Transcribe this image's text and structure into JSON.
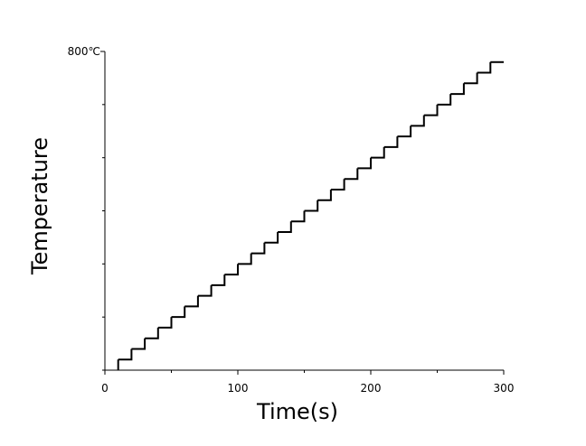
{
  "chart_data": {
    "type": "step",
    "drawstyle": "steps-post",
    "xlabel": "Time(s)",
    "ylabel": "Temperature",
    "x": [
      10,
      10,
      20,
      30,
      40,
      50,
      60,
      70,
      80,
      90,
      100,
      110,
      120,
      130,
      140,
      150,
      160,
      170,
      180,
      190,
      200,
      210,
      220,
      230,
      240,
      250,
      260,
      270,
      280,
      290,
      300
    ],
    "series": [
      {
        "color": "#000000",
        "values": [
          0,
          26.7,
          53.3,
          80,
          106.7,
          133.3,
          160,
          186.7,
          213.3,
          240,
          266.7,
          293.3,
          320,
          346.7,
          373.3,
          400,
          426.7,
          453.3,
          480,
          506.7,
          533.3,
          560,
          586.7,
          613.3,
          640,
          666.7,
          693.3,
          720,
          746.7,
          773.3,
          773.3
        ]
      }
    ],
    "xlim": [
      0,
      300
    ],
    "xticks": [
      0,
      100,
      200,
      300
    ],
    "xminorticks": [
      50,
      150,
      250
    ],
    "ylim": [
      0,
      800
    ],
    "yticks": [
      {
        "value": 800,
        "label": "800℃"
      }
    ],
    "yminorticks": [
      0,
      133.3,
      266.7,
      400,
      533.3,
      666.7
    ]
  }
}
